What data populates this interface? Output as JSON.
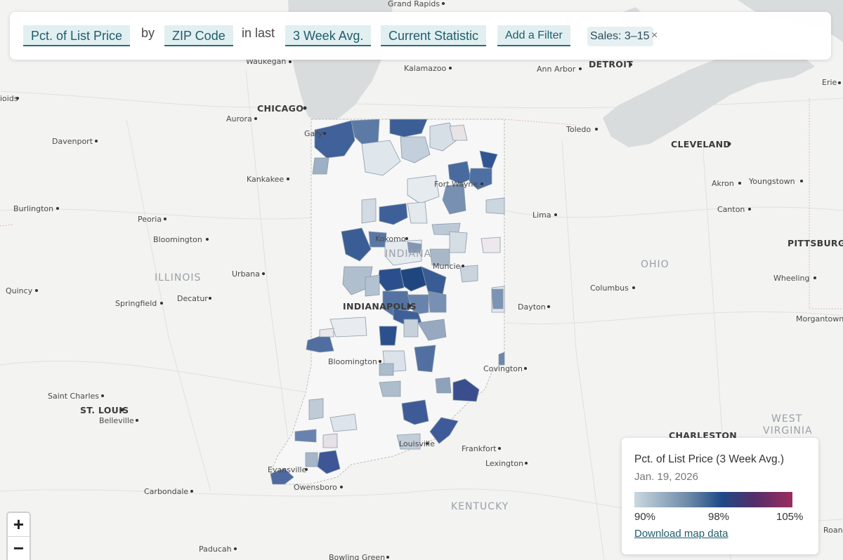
{
  "filters": {
    "metric": "Pct. of List Price",
    "by_text": "by",
    "geography": "ZIP Code",
    "in_last_text": "in last",
    "period": "3 Week Avg.",
    "statistic": "Current Statistic",
    "add_filter": "Add a Filter",
    "sales_chip": "Sales: 3–15",
    "remove_symbol": "×"
  },
  "zoom": {
    "in": "+",
    "out": "−"
  },
  "legend": {
    "title": "Pct. of List Price (3 Week Avg.)",
    "date": "Jan. 19, 2026",
    "min_label": "90%",
    "mid_label": "98%",
    "max_label": "105%",
    "scale_min": 90,
    "scale_mid": 98,
    "scale_max": 105,
    "colors": [
      "#cbd8df",
      "#6a87a6",
      "#1f4a86",
      "#512e6b",
      "#9c2c5c"
    ],
    "download_link": "Download map data"
  },
  "map": {
    "highlight_state": "INDIANA",
    "state_labels": [
      "ILLINOIS",
      "INDIANA",
      "OHIO",
      "KENTUCKY",
      "WEST",
      "VIRGINIA"
    ],
    "cities": [
      "Grand Rapids",
      "Waukegan",
      "Kalamazoo",
      "Ann Arbor",
      "DETROIT",
      "Erie",
      "CHICAGO",
      "Aurora",
      "Gary",
      "Toledo",
      "CLEVELAND",
      "Davenport",
      "Kankakee",
      "Fort Wayne",
      "Akron",
      "Youngstown",
      "Burlington",
      "Peoria",
      "Lima",
      "Canton",
      "Bloomington",
      "Kokomo",
      "PITTSBURGH",
      "Muncie",
      "Urbana",
      "Columbus",
      "Wheeling",
      "Quincy",
      "Springfield",
      "Decatur",
      "INDIANAPOLIS",
      "Dayton",
      "Morgantown",
      "Bloomington",
      "Covington",
      "Saint Charles",
      "ST. LOUIS",
      "Belleville",
      "CHARLESTON",
      "Louisville",
      "Frankfort",
      "Evansville",
      "Lexington",
      "Carbondale",
      "Owensboro",
      "Paducah",
      "Bowling Green",
      "ioids",
      "Roanoke"
    ]
  }
}
